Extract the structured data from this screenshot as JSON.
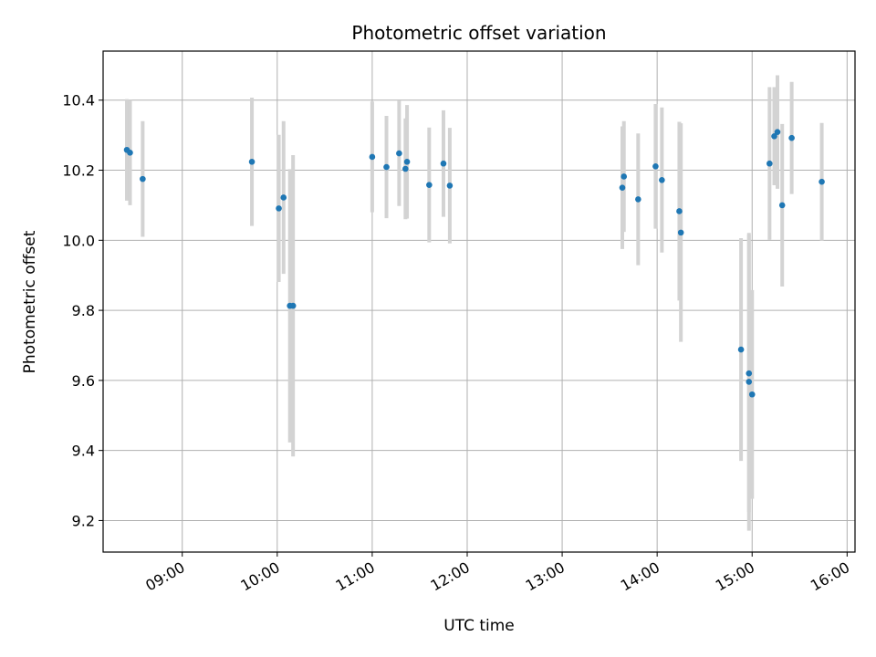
{
  "chart_data": {
    "type": "scatter",
    "title": "Photometric offset variation",
    "xlabel": "UTC time",
    "ylabel": "Photometric offset",
    "x_type": "time",
    "xlim": [
      "08:10",
      "16:05"
    ],
    "ylim": [
      9.11,
      10.54
    ],
    "grid": true,
    "x_ticks": [
      "09:00",
      "10:00",
      "11:00",
      "12:00",
      "13:00",
      "14:00",
      "15:00",
      "16:00"
    ],
    "y_ticks": [
      9.2,
      9.4,
      9.6,
      9.8,
      10.0,
      10.2,
      10.4
    ],
    "y_tick_labels": [
      "9.2",
      "9.4",
      "9.6",
      "9.8",
      "10.0",
      "10.2",
      "10.4"
    ],
    "errorbar_color": "#d3d3d3",
    "point_color": "#1f77b4",
    "points": [
      {
        "x": "08:25",
        "y": 10.258,
        "err": 0.145
      },
      {
        "x": "08:27",
        "y": 10.25,
        "err": 0.15
      },
      {
        "x": "08:35",
        "y": 10.175,
        "err": 0.165
      },
      {
        "x": "09:44",
        "y": 10.224,
        "err": 0.183
      },
      {
        "x": "10:01",
        "y": 10.091,
        "err": 0.21
      },
      {
        "x": "10:04",
        "y": 10.122,
        "err": 0.218
      },
      {
        "x": "10:08",
        "y": 9.813,
        "err": 0.39
      },
      {
        "x": "10:10",
        "y": 9.813,
        "err": 0.43
      },
      {
        "x": "11:00",
        "y": 10.238,
        "err": 0.158
      },
      {
        "x": "11:09",
        "y": 10.209,
        "err": 0.146
      },
      {
        "x": "11:17",
        "y": 10.248,
        "err": 0.15
      },
      {
        "x": "11:21",
        "y": 10.204,
        "err": 0.144
      },
      {
        "x": "11:22",
        "y": 10.224,
        "err": 0.162
      },
      {
        "x": "11:36",
        "y": 10.158,
        "err": 0.164
      },
      {
        "x": "11:45",
        "y": 10.219,
        "err": 0.152
      },
      {
        "x": "11:49",
        "y": 10.156,
        "err": 0.165
      },
      {
        "x": "13:38",
        "y": 10.15,
        "err": 0.175
      },
      {
        "x": "13:39",
        "y": 10.182,
        "err": 0.158
      },
      {
        "x": "13:48",
        "y": 10.117,
        "err": 0.188
      },
      {
        "x": "13:59",
        "y": 10.211,
        "err": 0.178
      },
      {
        "x": "14:03",
        "y": 10.172,
        "err": 0.207
      },
      {
        "x": "14:14",
        "y": 10.083,
        "err": 0.255
      },
      {
        "x": "14:15",
        "y": 10.022,
        "err": 0.312
      },
      {
        "x": "14:53",
        "y": 9.688,
        "err": 0.318
      },
      {
        "x": "14:58",
        "y": 9.62,
        "err": 0.396
      },
      {
        "x": "14:58",
        "y": 9.596,
        "err": 0.425
      },
      {
        "x": "15:00",
        "y": 9.56,
        "err": 0.298
      },
      {
        "x": "15:11",
        "y": 10.219,
        "err": 0.218
      },
      {
        "x": "15:14",
        "y": 10.297,
        "err": 0.14
      },
      {
        "x": "15:16",
        "y": 10.309,
        "err": 0.162
      },
      {
        "x": "15:19",
        "y": 10.1,
        "err": 0.232
      },
      {
        "x": "15:25",
        "y": 10.292,
        "err": 0.16
      },
      {
        "x": "15:44",
        "y": 10.167,
        "err": 0.168
      }
    ]
  }
}
